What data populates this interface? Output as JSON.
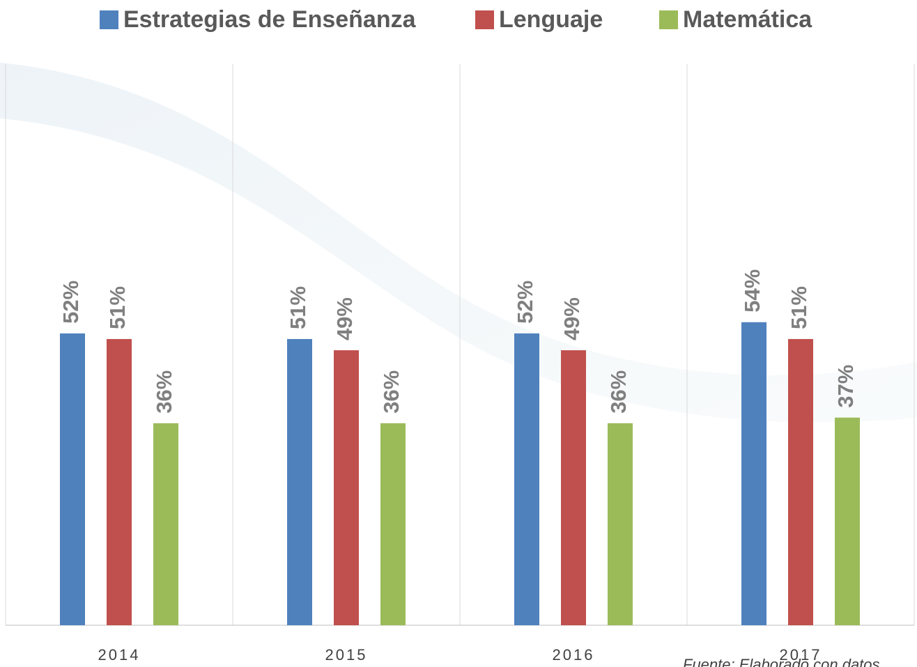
{
  "chart_data": {
    "type": "bar",
    "categories": [
      "2014",
      "2015",
      "2016",
      "2017"
    ],
    "series": [
      {
        "name": "Estrategias de Enseñanza",
        "color": "#4f81bd",
        "values": [
          52,
          51,
          52,
          54
        ],
        "value_labels": [
          "52%",
          "51%",
          "52%",
          "54%"
        ]
      },
      {
        "name": "Lenguaje",
        "color": "#c0504d",
        "values": [
          51,
          49,
          49,
          51
        ],
        "value_labels": [
          "51%",
          "49%",
          "49%",
          "51%"
        ]
      },
      {
        "name": "Matemática",
        "color": "#9bbb59",
        "values": [
          36,
          36,
          36,
          37
        ],
        "value_labels": [
          "36%",
          "36%",
          "36%",
          "37%"
        ]
      }
    ],
    "ylim": [
      0,
      100
    ],
    "legend": "top",
    "annotation": "Fuente: Elaborado con datos"
  }
}
